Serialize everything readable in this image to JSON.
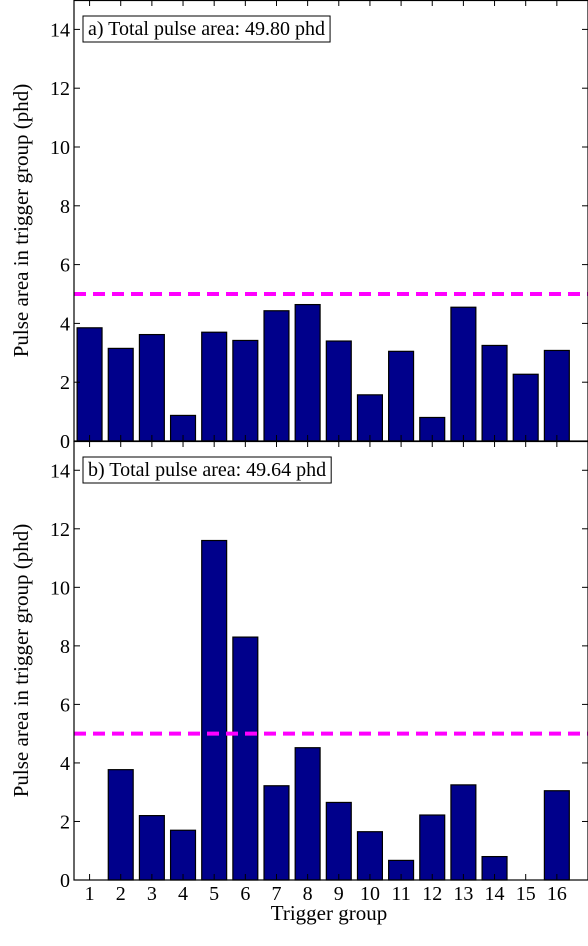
{
  "chart_data": [
    {
      "type": "bar",
      "panel": "a",
      "annotation": "a) Total pulse area: 49.80 phd",
      "ylabel": "Pulse area in trigger group (phd)",
      "xlabel": "",
      "categories": [
        "1",
        "2",
        "3",
        "4",
        "5",
        "6",
        "7",
        "8",
        "9",
        "10",
        "11",
        "12",
        "13",
        "14",
        "15",
        "16"
      ],
      "values": [
        3.85,
        3.15,
        3.62,
        0.87,
        3.7,
        3.42,
        4.43,
        4.64,
        3.4,
        1.57,
        3.05,
        0.8,
        4.55,
        3.25,
        2.27,
        3.08
      ],
      "ylim": [
        0,
        15
      ],
      "yticks": [
        0,
        2,
        4,
        6,
        8,
        10,
        12,
        14
      ],
      "show_xtick_labels": false,
      "threshold": 5,
      "bar_color": "#00008b",
      "threshold_color": "#ff00ff"
    },
    {
      "type": "bar",
      "panel": "b",
      "annotation": "b) Total pulse area: 49.64 phd",
      "ylabel": "Pulse area in trigger group (phd)",
      "xlabel": "Trigger group",
      "categories": [
        "1",
        "2",
        "3",
        "4",
        "5",
        "6",
        "7",
        "8",
        "9",
        "10",
        "11",
        "12",
        "13",
        "14",
        "15",
        "16"
      ],
      "values": [
        0,
        3.77,
        2.2,
        1.7,
        11.6,
        8.3,
        3.22,
        4.52,
        2.65,
        1.65,
        0.67,
        2.22,
        3.25,
        0.8,
        0,
        3.05
      ],
      "ylim": [
        0,
        15
      ],
      "yticks": [
        0,
        2,
        4,
        6,
        8,
        10,
        12,
        14
      ],
      "show_xtick_labels": true,
      "threshold": 5,
      "bar_color": "#00008b",
      "threshold_color": "#ff00ff"
    }
  ]
}
